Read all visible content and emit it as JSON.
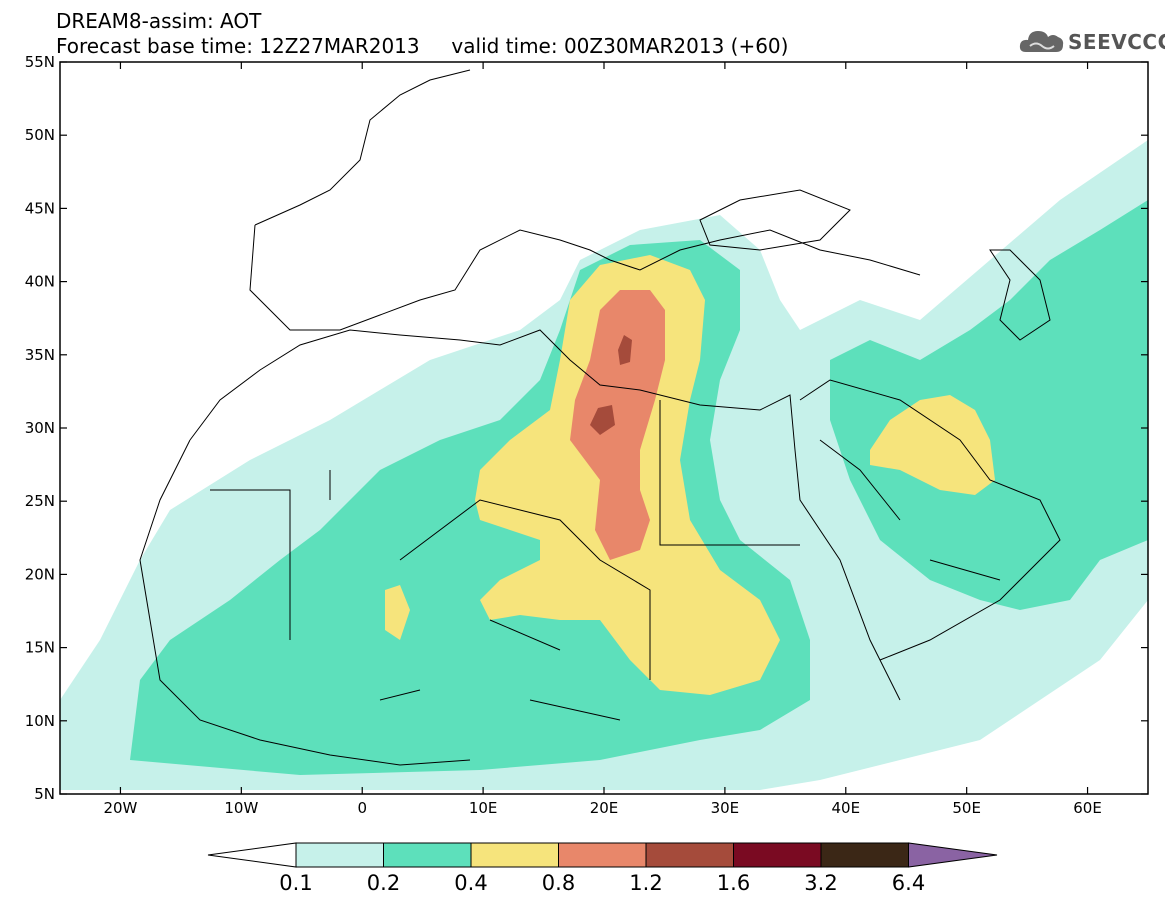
{
  "header": {
    "line1": "DREAM8-assim: AOT",
    "line2": "Forecast base time: 12Z27MAR2013     valid time: 00Z30MAR2013 (+60)"
  },
  "logo": {
    "text": "SEEVCCC",
    "icon": "cloud-icon"
  },
  "map": {
    "projection": "lat-lon",
    "lon_range": [
      -25,
      65
    ],
    "lat_range": [
      5,
      55
    ],
    "lat_ticks": [
      "55N",
      "50N",
      "45N",
      "40N",
      "35N",
      "30N",
      "25N",
      "20N",
      "15N",
      "10N",
      "5N"
    ],
    "lat_values": [
      55,
      50,
      45,
      40,
      35,
      30,
      25,
      20,
      15,
      10,
      5
    ],
    "lon_ticks": [
      "20W",
      "10W",
      "0",
      "10E",
      "20E",
      "30E",
      "40E",
      "50E",
      "60E"
    ],
    "lon_values": [
      -20,
      -10,
      0,
      10,
      20,
      30,
      40,
      50,
      60
    ]
  },
  "colorbar": {
    "labels": [
      "0.1",
      "0.2",
      "0.4",
      "0.8",
      "1.2",
      "1.6",
      "3.2",
      "6.4"
    ],
    "colors": [
      "#ffffff",
      "#c6f1ea",
      "#5de0bb",
      "#f6e47c",
      "#e8876a",
      "#a54b3b",
      "#7a0a22",
      "#3b2716",
      "#8a63a3"
    ]
  }
}
